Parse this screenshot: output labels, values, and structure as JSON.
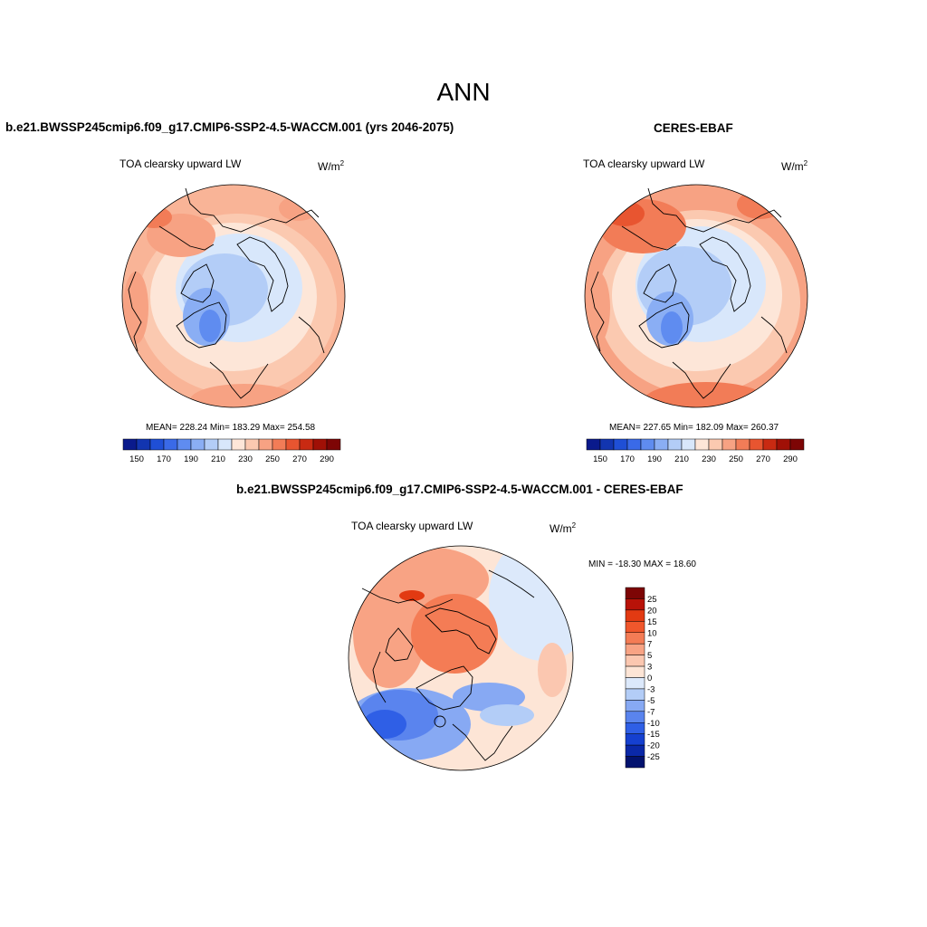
{
  "figure": {
    "season": "ANN"
  },
  "panels": [
    {
      "title": "b.e21.BWSSP245cmip6.f09_g17.CMIP6-SSP2-4.5-WACCM.001 (yrs 2046-2075)",
      "variable": "TOA clearsky upward LW",
      "units_base": "W/m",
      "units_exp": "2",
      "stats": "MEAN= 228.24  Min= 183.29  Max= 254.58",
      "mean": 228.24,
      "min": 183.29,
      "max": 254.58
    },
    {
      "title": "CERES-EBAF",
      "variable": "TOA clearsky upward LW",
      "units_base": "W/m",
      "units_exp": "2",
      "stats": "MEAN= 227.65  Min= 182.09  Max= 260.37",
      "mean": 227.65,
      "min": 182.09,
      "max": 260.37
    },
    {
      "title": "b.e21.BWSSP245cmip6.f09_g17.CMIP6-SSP2-4.5-WACCM.001 - CERES-EBAF",
      "variable": "TOA clearsky upward LW",
      "units_base": "W/m",
      "units_exp": "2",
      "stats": "MIN = -18.30 MAX =  18.60",
      "min": -18.3,
      "max": 18.6
    }
  ],
  "chart_data": [
    {
      "type": "heatmap",
      "projection": "north-polar-stereographic",
      "field": "TOA clearsky upward LW (model)",
      "colorbar": {
        "orientation": "horizontal",
        "levels": [
          150,
          160,
          170,
          180,
          190,
          200,
          210,
          220,
          230,
          240,
          250,
          260,
          270,
          280,
          290
        ],
        "tick_labels": [
          "150",
          "170",
          "190",
          "210",
          "230",
          "250",
          "270",
          "290"
        ],
        "colors": [
          "#0a1a8c",
          "#1235b0",
          "#1f4fd6",
          "#3a6ae8",
          "#5f8cf0",
          "#8aaef4",
          "#b3cdf7",
          "#d8e7fb",
          "#fde6d8",
          "#fbc9b0",
          "#f7a283",
          "#f27c57",
          "#e85530",
          "#c92a12",
          "#a01006",
          "#7d0505"
        ]
      },
      "mean": 228.24,
      "min": 183.29,
      "max": 254.58
    },
    {
      "type": "heatmap",
      "projection": "north-polar-stereographic",
      "field": "TOA clearsky upward LW (CERES-EBAF)",
      "colorbar": {
        "orientation": "horizontal",
        "levels": [
          150,
          160,
          170,
          180,
          190,
          200,
          210,
          220,
          230,
          240,
          250,
          260,
          270,
          280,
          290
        ],
        "tick_labels": [
          "150",
          "170",
          "190",
          "210",
          "230",
          "250",
          "270",
          "290"
        ],
        "colors": [
          "#0a1a8c",
          "#1235b0",
          "#1f4fd6",
          "#3a6ae8",
          "#5f8cf0",
          "#8aaef4",
          "#b3cdf7",
          "#d8e7fb",
          "#fde6d8",
          "#fbc9b0",
          "#f7a283",
          "#f27c57",
          "#e85530",
          "#c92a12",
          "#a01006",
          "#7d0505"
        ]
      },
      "mean": 227.65,
      "min": 182.09,
      "max": 260.37
    },
    {
      "type": "heatmap",
      "projection": "north-polar-stereographic",
      "field": "TOA clearsky upward LW (model - obs)",
      "colorbar": {
        "orientation": "vertical",
        "levels": [
          -25,
          -20,
          -15,
          -10,
          -7,
          -5,
          -3,
          0,
          3,
          5,
          7,
          10,
          15,
          20,
          25
        ],
        "tick_labels": [
          "25",
          "20",
          "15",
          "10",
          "7",
          "5",
          "3",
          "0",
          "-3",
          "-5",
          "-7",
          "-10",
          "-15",
          "-20",
          "-25"
        ],
        "colors": [
          "#7d0505",
          "#b81208",
          "#e23a12",
          "#f0572c",
          "#f47c55",
          "#f8a384",
          "#fbc7b0",
          "#fde5d6",
          "#dce9fb",
          "#b3cdf7",
          "#87a9f3",
          "#5a84ee",
          "#2f5fe6",
          "#1540d0",
          "#0a28a8",
          "#02126e"
        ]
      },
      "min": -18.3,
      "max": 18.6
    }
  ]
}
